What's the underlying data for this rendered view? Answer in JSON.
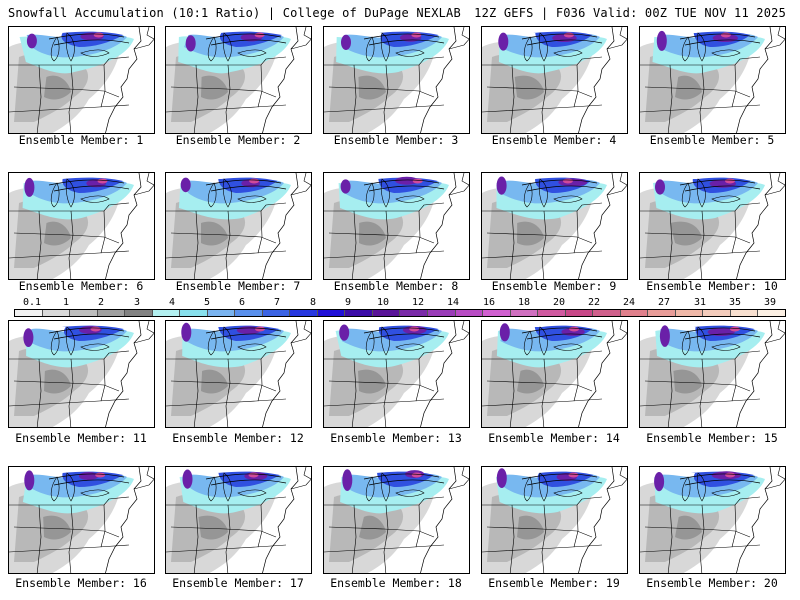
{
  "header": {
    "left": "Snowfall Accumulation (10:1 Ratio) | College of DuPage NEXLAB",
    "right": "12Z GEFS | F036 Valid: 00Z TUE NOV 11 2025"
  },
  "colorbar": {
    "ticks": [
      "0.1",
      "1",
      "2",
      "3",
      "4",
      "5",
      "6",
      "7",
      "8",
      "9",
      "10",
      "12",
      "14",
      "16",
      "18",
      "20",
      "22",
      "24",
      "27",
      "31",
      "35",
      "39"
    ],
    "colors": [
      "#f2f2f2",
      "#d9d9d9",
      "#bdbdbd",
      "#a0a0a0",
      "#828282",
      "#b3f0f0",
      "#88e0ec",
      "#7ab4f0",
      "#5a90ec",
      "#3c64e4",
      "#2838e0",
      "#2010d8",
      "#3c0ca8",
      "#5a1498",
      "#7a2aa8",
      "#9a3cb8",
      "#b84cc4",
      "#d060d0",
      "#d070c0",
      "#d05aa0",
      "#c84888",
      "#d0608c",
      "#e0808c",
      "#e89c98",
      "#f0b8a8",
      "#f4ccbc",
      "#f8e0d0",
      "#fcf0e4"
    ]
  },
  "panels": [
    {
      "label": "Ensemble Member: 1",
      "icon": "snowfall-map"
    },
    {
      "label": "Ensemble Member: 2",
      "icon": "snowfall-map"
    },
    {
      "label": "Ensemble Member: 3",
      "icon": "snowfall-map"
    },
    {
      "label": "Ensemble Member: 4",
      "icon": "snowfall-map"
    },
    {
      "label": "Ensemble Member: 5",
      "icon": "snowfall-map"
    },
    {
      "label": "Ensemble Member: 6",
      "icon": "snowfall-map"
    },
    {
      "label": "Ensemble Member: 7",
      "icon": "snowfall-map"
    },
    {
      "label": "Ensemble Member: 8",
      "icon": "snowfall-map"
    },
    {
      "label": "Ensemble Member: 9",
      "icon": "snowfall-map"
    },
    {
      "label": "Ensemble Member: 10",
      "icon": "snowfall-map"
    },
    {
      "label": "Ensemble Member: 11",
      "icon": "snowfall-map"
    },
    {
      "label": "Ensemble Member: 12",
      "icon": "snowfall-map"
    },
    {
      "label": "Ensemble Member: 13",
      "icon": "snowfall-map"
    },
    {
      "label": "Ensemble Member: 14",
      "icon": "snowfall-map"
    },
    {
      "label": "Ensemble Member: 15",
      "icon": "snowfall-map"
    },
    {
      "label": "Ensemble Member: 16",
      "icon": "snowfall-map"
    },
    {
      "label": "Ensemble Member: 17",
      "icon": "snowfall-map"
    },
    {
      "label": "Ensemble Member: 18",
      "icon": "snowfall-map"
    },
    {
      "label": "Ensemble Member: 19",
      "icon": "snowfall-map"
    },
    {
      "label": "Ensemble Member: 20",
      "icon": "snowfall-map"
    }
  ]
}
